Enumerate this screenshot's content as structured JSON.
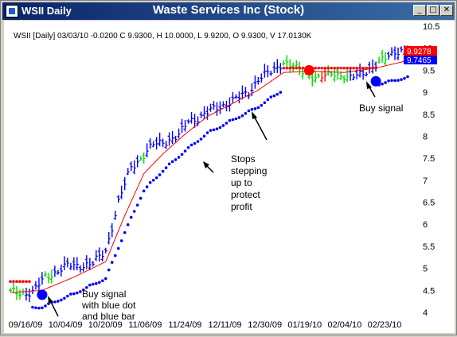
{
  "window": {
    "symbol_title": "WSII Daily",
    "title": "Waste Services Inc (Stock)",
    "minimize_glyph": "_",
    "maximize_glyph": "□",
    "close_glyph": "✕"
  },
  "info_line": "WSII [Daily] 03/03/10  -0.0200 C 9.9300, H 10.0000, L 9.9200, O 9.9300, V 17.0130K",
  "price_tags": {
    "upper": "9.9278",
    "lower": "9.7465"
  },
  "annotations": {
    "buy_signal_1": [
      "Buy signal",
      "with blue dot",
      "and blue bar"
    ],
    "stops": [
      "Stops",
      "stepping",
      "up to",
      "protect",
      "profit"
    ],
    "buy_signal_2": [
      "Buy signal"
    ]
  },
  "colors": {
    "up_bar": "#0000ff",
    "green_bar": "#00dd00",
    "red_bar": "#ff0000",
    "dot_blue": "#0000ff",
    "dot_red": "#ff0000",
    "moving_avg": "#ff0000",
    "upper_tag_bg": "#ff0000",
    "lower_tag_bg": "#0000ff"
  },
  "chart_data": {
    "type": "ohlc",
    "y_range": [
      4.0,
      10.5
    ],
    "y_ticks": [
      "10.5",
      "10",
      "9.5",
      "9",
      "8.5",
      "8",
      "7.5",
      "7",
      "6.5",
      "6",
      "5.5",
      "5",
      "4.5",
      "4"
    ],
    "x_ticks": [
      "09/16/09",
      "10/04/09",
      "10/20/09",
      "11/06/09",
      "11/24/09",
      "12/11/09",
      "12/30/09",
      "01/19/10",
      "02/04/10",
      "02/23/10"
    ],
    "grid": false,
    "anchors": [
      [
        0,
        4.45
      ],
      [
        7,
        4.45
      ],
      [
        11,
        4.8
      ],
      [
        18,
        5.05
      ],
      [
        26,
        5.1
      ],
      [
        30,
        5.4
      ],
      [
        34,
        6.5
      ],
      [
        38,
        7.3
      ],
      [
        41,
        7.5
      ],
      [
        45,
        7.8
      ],
      [
        49,
        7.9
      ],
      [
        53,
        8.0
      ],
      [
        56,
        8.35
      ],
      [
        60,
        8.45
      ],
      [
        65,
        8.65
      ],
      [
        70,
        8.8
      ],
      [
        75,
        9.0
      ],
      [
        78,
        9.3
      ],
      [
        82,
        9.45
      ],
      [
        86,
        9.7
      ],
      [
        89,
        9.55
      ],
      [
        93,
        9.45
      ],
      [
        97,
        9.3
      ],
      [
        102,
        9.45
      ],
      [
        107,
        9.3
      ],
      [
        112,
        9.5
      ],
      [
        116,
        9.65
      ],
      [
        121,
        9.95
      ],
      [
        125,
        9.9
      ]
    ],
    "bar_count": 126,
    "green_ranges": [
      [
        0,
        4
      ],
      [
        11,
        13
      ],
      [
        41,
        42
      ],
      [
        86,
        88
      ],
      [
        89,
        106
      ],
      [
        116,
        118
      ]
    ],
    "red_ranges": [
      [
        98,
        99
      ]
    ],
    "red_dots_ranges": [
      [
        0,
        6
      ],
      [
        86,
        115
      ]
    ],
    "blue_dots_ranges": [
      [
        7,
        85
      ],
      [
        116,
        125
      ]
    ],
    "moving_average": [
      [
        0,
        4.45
      ],
      [
        10,
        4.5
      ],
      [
        20,
        4.8
      ],
      [
        30,
        5.15
      ],
      [
        36,
        6.2
      ],
      [
        42,
        7.15
      ],
      [
        48,
        7.6
      ],
      [
        55,
        8.05
      ],
      [
        62,
        8.45
      ],
      [
        70,
        8.75
      ],
      [
        78,
        9.05
      ],
      [
        86,
        9.45
      ],
      [
        95,
        9.48
      ],
      [
        105,
        9.45
      ],
      [
        115,
        9.55
      ],
      [
        125,
        9.72
      ]
    ],
    "signal_points": [
      {
        "name": "buy-signal-1",
        "bar": 10,
        "value": 4.4,
        "color": "#0000ff"
      },
      {
        "name": "stop-switch",
        "bar": 94,
        "value": 9.5,
        "color": "#ff0000"
      },
      {
        "name": "buy-signal-2",
        "bar": 115,
        "value": 9.25,
        "color": "#0000ff"
      }
    ]
  }
}
